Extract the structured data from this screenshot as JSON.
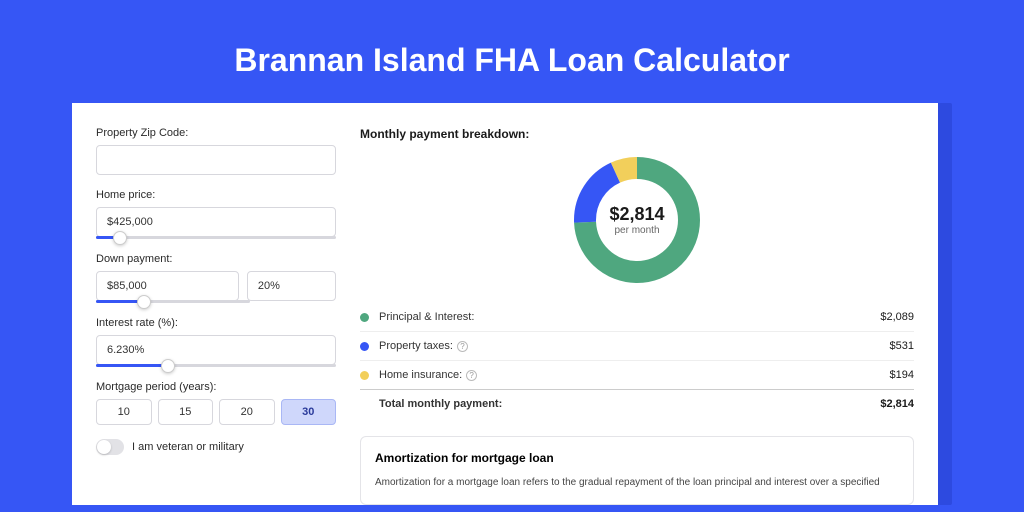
{
  "colors": {
    "page_bg": "#3656f5",
    "accent": "#3656f5",
    "principal": "#4fa77f",
    "taxes": "#3656f5",
    "insurance": "#f2cf5b",
    "card_bg": "#ffffff",
    "border": "#d7d7dd"
  },
  "header": {
    "title": "Brannan Island FHA Loan Calculator"
  },
  "form": {
    "zip": {
      "label": "Property Zip Code:",
      "value": ""
    },
    "home_price": {
      "label": "Home price:",
      "value": "$425,000",
      "slider_pct": 10
    },
    "down_payment": {
      "label": "Down payment:",
      "amount": "$85,000",
      "pct": "20%",
      "slider_pct": 20
    },
    "interest_rate": {
      "label": "Interest rate (%):",
      "value": "6.230%",
      "slider_pct": 30
    },
    "period": {
      "label": "Mortgage period (years):",
      "options": [
        "10",
        "15",
        "20",
        "30"
      ],
      "selected": "30"
    },
    "veteran": {
      "label": "I am veteran or military",
      "checked": false
    }
  },
  "breakdown": {
    "title": "Monthly payment breakdown:",
    "donut": {
      "amount": "$2,814",
      "sub": "per month",
      "segments": [
        {
          "key": "principal",
          "value": 2089,
          "color": "#4fa77f"
        },
        {
          "key": "taxes",
          "value": 531,
          "color": "#3656f5"
        },
        {
          "key": "insurance",
          "value": 194,
          "color": "#f2cf5b"
        }
      ],
      "total": 2814,
      "stroke_width": 22,
      "radius": 52
    },
    "items": [
      {
        "label": "Principal & Interest:",
        "value": "$2,089",
        "color": "#4fa77f",
        "info": false
      },
      {
        "label": "Property taxes:",
        "value": "$531",
        "color": "#3656f5",
        "info": true
      },
      {
        "label": "Home insurance:",
        "value": "$194",
        "color": "#f2cf5b",
        "info": true
      }
    ],
    "total": {
      "label": "Total monthly payment:",
      "value": "$2,814"
    }
  },
  "amortization": {
    "title": "Amortization for mortgage loan",
    "text": "Amortization for a mortgage loan refers to the gradual repayment of the loan principal and interest over a specified"
  }
}
